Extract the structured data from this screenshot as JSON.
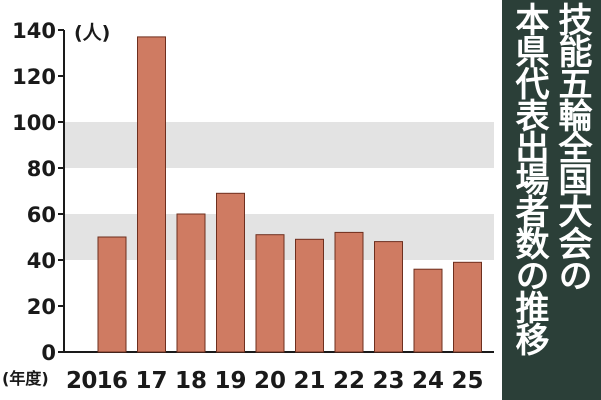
{
  "title": {
    "line1": "技能五輪全国大会の",
    "line2": "本県代表出場者数の推移"
  },
  "colors": {
    "bar": "#cf7b62",
    "bar_edge": "#6e2f1e",
    "band": "#e3e3e3",
    "title_bg": "#2b3f38",
    "text": "#1a1a1a"
  },
  "chart_data": {
    "type": "bar",
    "title": "技能五輪全国大会の本県代表出場者数の推移",
    "ylabel": "(人)",
    "xlabel": "(年度)",
    "ylim": [
      0,
      140
    ],
    "yticks": [
      0,
      20,
      40,
      60,
      80,
      100,
      120,
      140
    ],
    "categories": [
      "2016",
      "17",
      "18",
      "19",
      "20",
      "21",
      "22",
      "23",
      "24",
      "25"
    ],
    "values": [
      50,
      137,
      60,
      69,
      51,
      49,
      52,
      48,
      36,
      39
    ],
    "grid": "alternating horizontal bands"
  }
}
